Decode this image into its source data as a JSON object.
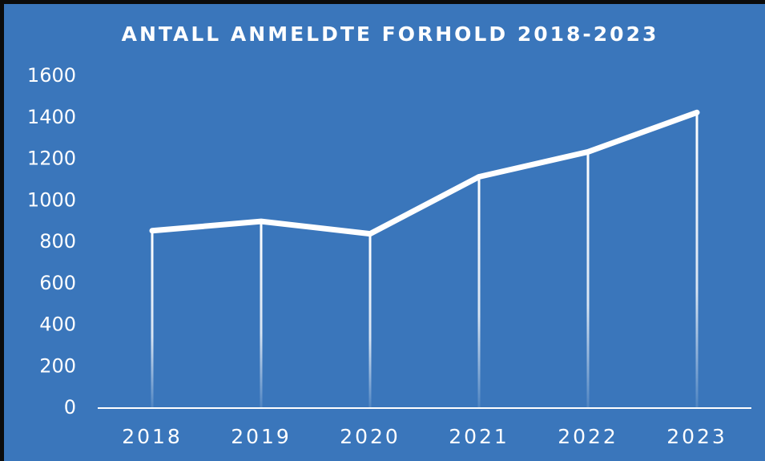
{
  "chart_data": {
    "type": "line",
    "title": "ANTALL ANMELDTE FORHOLD 2018-2023",
    "categories": [
      "2018",
      "2019",
      "2020",
      "2021",
      "2022",
      "2023"
    ],
    "values": [
      855,
      900,
      840,
      1115,
      1235,
      1425
    ],
    "color": "#ffffff",
    "ylim": [
      0,
      1600
    ],
    "yticks": [
      0,
      200,
      400,
      600,
      800,
      1000,
      1200,
      1400,
      1600
    ],
    "grid": false,
    "drop_lines": true
  }
}
